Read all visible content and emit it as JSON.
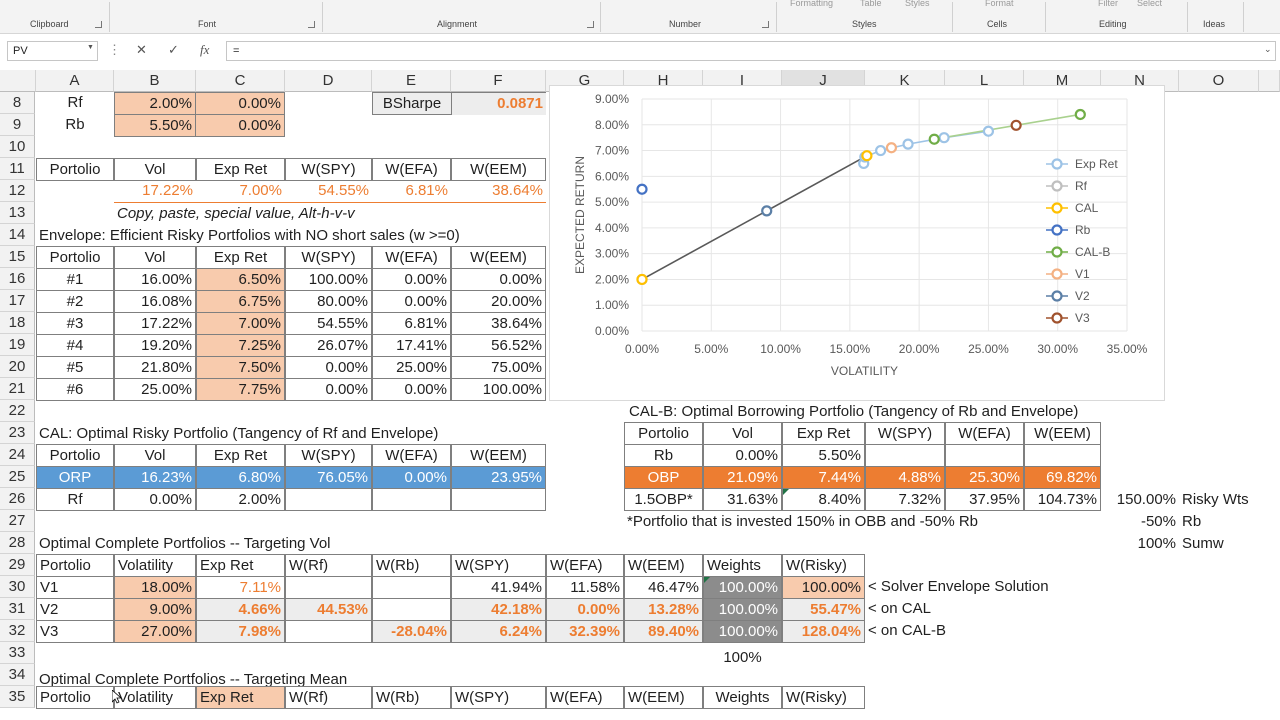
{
  "ribbon": {
    "groups": [
      "Clipboard",
      "Font",
      "Alignment",
      "Number",
      "Styles",
      "Cells",
      "Editing",
      "Ideas"
    ],
    "faded": [
      "Formatting",
      "Table",
      "Styles",
      "Format",
      "Filter",
      "Select"
    ]
  },
  "formula_bar": {
    "name_box": "PV",
    "cancel_icon": "✕",
    "enter_icon": "✓",
    "fx_label": "fx",
    "formula": "="
  },
  "columns": [
    "A",
    "B",
    "C",
    "D",
    "E",
    "F",
    "G",
    "H",
    "I",
    "J",
    "K",
    "L",
    "M",
    "N",
    "O"
  ],
  "rows": [
    "8",
    "9",
    "10",
    "11",
    "12",
    "13",
    "14",
    "15",
    "16",
    "17",
    "18",
    "19",
    "20",
    "21",
    "22",
    "23",
    "24",
    "25",
    "26",
    "27",
    "28",
    "29",
    "30",
    "31",
    "32",
    "33",
    "34",
    "35"
  ],
  "sheet": {
    "r8": {
      "a": "Rf",
      "b": "2.00%",
      "c": "0.00%",
      "e": "BSharpe",
      "f": "0.0871"
    },
    "r9": {
      "a": "Rb",
      "b": "5.50%",
      "c": "0.00%"
    },
    "r11": [
      "Portolio",
      "Vol",
      "Exp Ret",
      "W(SPY)",
      "W(EFA)",
      "W(EEM)"
    ],
    "r12": [
      "",
      "17.22%",
      "7.00%",
      "54.55%",
      "6.81%",
      "38.64%"
    ],
    "r13": "Copy, paste, special  value, Alt-h-v-v",
    "r14": "Envelope: Efficient Risky Portfolios with NO short sales (w >=0)",
    "r15": [
      "Portolio",
      "Vol",
      "Exp Ret",
      "W(SPY)",
      "W(EFA)",
      "W(EEM)"
    ],
    "envelope": [
      [
        "#1",
        "16.00%",
        "6.50%",
        "100.00%",
        "0.00%",
        "0.00%"
      ],
      [
        "#2",
        "16.08%",
        "6.75%",
        "80.00%",
        "0.00%",
        "20.00%"
      ],
      [
        "#3",
        "17.22%",
        "7.00%",
        "54.55%",
        "6.81%",
        "38.64%"
      ],
      [
        "#4",
        "19.20%",
        "7.25%",
        "26.07%",
        "17.41%",
        "56.52%"
      ],
      [
        "#5",
        "21.80%",
        "7.50%",
        "0.00%",
        "25.00%",
        "75.00%"
      ],
      [
        "#6",
        "25.00%",
        "7.75%",
        "0.00%",
        "0.00%",
        "100.00%"
      ]
    ],
    "r22": "CAL-B: Optimal Borrowing Portfolio (Tangency of Rb and Envelope)",
    "r23": "CAL: Optimal Risky Portfolio (Tangency of Rf and Envelope)",
    "cal_header": [
      "Portolio",
      "Vol",
      "Exp Ret",
      "W(SPY)",
      "W(EFA)",
      "W(EEM)"
    ],
    "orp": [
      "ORP",
      "16.23%",
      "6.80%",
      "76.05%",
      "0.00%",
      "23.95%"
    ],
    "rf_row": [
      "Rf",
      "0.00%",
      "2.00%",
      "",
      "",
      ""
    ],
    "calb_header": [
      "Portolio",
      "Vol",
      "Exp Ret",
      "W(SPY)",
      "W(EFA)",
      "W(EEM)"
    ],
    "calb_rb": [
      "Rb",
      "0.00%",
      "5.50%",
      "",
      "",
      ""
    ],
    "obp": [
      "OBP",
      "21.09%",
      "7.44%",
      "4.88%",
      "25.30%",
      "69.82%"
    ],
    "obp15": [
      "1.5OBP*",
      "31.63%",
      "8.40%",
      "7.32%",
      "37.95%",
      "104.73%"
    ],
    "r26_right": {
      "pct": "150.00%",
      "label": "Risky Wts"
    },
    "r27": "*Portfolio that is invested 150% in OBB and -50% Rb",
    "r27_right": {
      "pct": "-50%",
      "label": "Rb"
    },
    "r28": "Optimal Complete Portfolios -- Targeting Vol",
    "r28_right": {
      "pct": "100%",
      "label": "Sumw"
    },
    "complete_header": [
      "Portolio",
      "Volatility",
      "Exp Ret",
      "W(Rf)",
      "W(Rb)",
      "W(SPY)",
      "W(EFA)",
      "W(EEM)",
      "Weights",
      "W(Risky)"
    ],
    "v_rows": [
      [
        "V1",
        "18.00%",
        "7.11%",
        "",
        "",
        "41.94%",
        "11.58%",
        "46.47%",
        "100.00%",
        "100.00%",
        "< Solver Envelope Solution"
      ],
      [
        "V2",
        "9.00%",
        "4.66%",
        "44.53%",
        "",
        "42.18%",
        "0.00%",
        "13.28%",
        "100.00%",
        "55.47%",
        "< on CAL"
      ],
      [
        "V3",
        "27.00%",
        "7.98%",
        "",
        "-28.04%",
        "6.24%",
        "32.39%",
        "89.40%",
        "100.00%",
        "128.04%",
        "< on CAL-B"
      ]
    ],
    "r33": "100%",
    "r34": "Optimal Complete Portfolios -- Targeting Mean",
    "r35": [
      "Portolio",
      "Volatility",
      "Exp Ret",
      "W(Rf)",
      "W(Rb)",
      "W(SPY)",
      "W(EFA)",
      "W(EEM)",
      "Weights",
      "W(Risky)"
    ]
  },
  "chart_data": {
    "type": "scatter",
    "title": "",
    "xlabel": "VOLATILITY",
    "ylabel": "EXPECTED RETURN",
    "xlim": [
      0,
      0.35
    ],
    "ylim": [
      0,
      0.09
    ],
    "x_ticks": [
      "0.00%",
      "5.00%",
      "10.00%",
      "15.00%",
      "20.00%",
      "25.00%",
      "30.00%",
      "35.00%"
    ],
    "y_ticks": [
      "0.00%",
      "1.00%",
      "2.00%",
      "3.00%",
      "4.00%",
      "5.00%",
      "6.00%",
      "7.00%",
      "8.00%",
      "9.00%"
    ],
    "grid": true,
    "legend_position": "right",
    "series": [
      {
        "name": "Exp Ret",
        "color": "#9dc3e6",
        "line": true,
        "points": [
          [
            0.16,
            0.065
          ],
          [
            0.1608,
            0.0675
          ],
          [
            0.1722,
            0.07
          ],
          [
            0.192,
            0.0725
          ],
          [
            0.218,
            0.075
          ],
          [
            0.25,
            0.0775
          ]
        ]
      },
      {
        "name": "Rf",
        "color": "#bfbfbf",
        "line": false,
        "points": [
          [
            0.0,
            0.02
          ]
        ]
      },
      {
        "name": "CAL",
        "color": "#ffc000",
        "line": true,
        "points": [
          [
            0.0,
            0.02
          ],
          [
            0.1623,
            0.068
          ]
        ]
      },
      {
        "name": "Rb",
        "color": "#4472c4",
        "line": false,
        "points": [
          [
            0.0,
            0.055
          ]
        ]
      },
      {
        "name": "CAL-B",
        "color": "#70ad47",
        "line": true,
        "points": [
          [
            0.2109,
            0.0744
          ],
          [
            0.3163,
            0.084
          ]
        ]
      },
      {
        "name": "V1",
        "color": "#f4b183",
        "line": false,
        "points": [
          [
            0.18,
            0.0711
          ]
        ]
      },
      {
        "name": "V2",
        "color": "#5b7fa6",
        "line": false,
        "points": [
          [
            0.09,
            0.0466
          ]
        ]
      },
      {
        "name": "V3",
        "color": "#a0522d",
        "line": false,
        "points": [
          [
            0.27,
            0.0798
          ]
        ]
      }
    ]
  }
}
